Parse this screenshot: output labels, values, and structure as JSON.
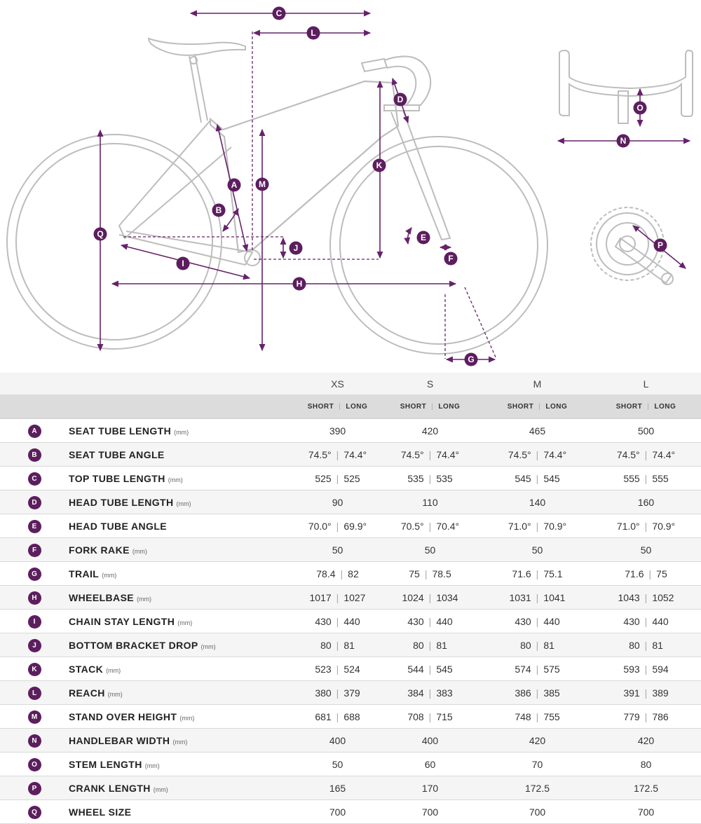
{
  "diagram": {
    "tags": [
      "C",
      "L",
      "A",
      "B",
      "D",
      "E",
      "F",
      "G",
      "H",
      "I",
      "J",
      "K",
      "M",
      "N",
      "O",
      "P",
      "Q"
    ]
  },
  "table": {
    "sizes": [
      "XS",
      "S",
      "M",
      "L"
    ],
    "short_label": "SHORT",
    "long_label": "LONG",
    "separator": "|",
    "rows": [
      {
        "code": "A",
        "label": "SEAT TUBE LENGTH",
        "unit": "(mm)",
        "values": [
          [
            "390"
          ],
          [
            "420"
          ],
          [
            "465"
          ],
          [
            "500"
          ]
        ]
      },
      {
        "code": "B",
        "label": "SEAT TUBE ANGLE",
        "unit": "",
        "values": [
          [
            "74.5°",
            "74.4°"
          ],
          [
            "74.5°",
            "74.4°"
          ],
          [
            "74.5°",
            "74.4°"
          ],
          [
            "74.5°",
            "74.4°"
          ]
        ]
      },
      {
        "code": "C",
        "label": "TOP TUBE LENGTH",
        "unit": "(mm)",
        "values": [
          [
            "525",
            "525"
          ],
          [
            "535",
            "535"
          ],
          [
            "545",
            "545"
          ],
          [
            "555",
            "555"
          ]
        ]
      },
      {
        "code": "D",
        "label": "HEAD TUBE LENGTH",
        "unit": "(mm)",
        "values": [
          [
            "90"
          ],
          [
            "110"
          ],
          [
            "140"
          ],
          [
            "160"
          ]
        ]
      },
      {
        "code": "E",
        "label": "HEAD TUBE ANGLE",
        "unit": "",
        "values": [
          [
            "70.0°",
            "69.9°"
          ],
          [
            "70.5°",
            "70.4°"
          ],
          [
            "71.0°",
            "70.9°"
          ],
          [
            "71.0°",
            "70.9°"
          ]
        ]
      },
      {
        "code": "F",
        "label": "FORK RAKE",
        "unit": "(mm)",
        "values": [
          [
            "50"
          ],
          [
            "50"
          ],
          [
            "50"
          ],
          [
            "50"
          ]
        ]
      },
      {
        "code": "G",
        "label": "TRAIL",
        "unit": "(mm)",
        "values": [
          [
            "78.4",
            "82"
          ],
          [
            "75",
            "78.5"
          ],
          [
            "71.6",
            "75.1"
          ],
          [
            "71.6",
            "75"
          ]
        ]
      },
      {
        "code": "H",
        "label": "WHEELBASE",
        "unit": "(mm)",
        "values": [
          [
            "1017",
            "1027"
          ],
          [
            "1024",
            "1034"
          ],
          [
            "1031",
            "1041"
          ],
          [
            "1043",
            "1052"
          ]
        ]
      },
      {
        "code": "I",
        "label": "CHAIN STAY LENGTH",
        "unit": "(mm)",
        "values": [
          [
            "430",
            "440"
          ],
          [
            "430",
            "440"
          ],
          [
            "430",
            "440"
          ],
          [
            "430",
            "440"
          ]
        ]
      },
      {
        "code": "J",
        "label": "BOTTOM BRACKET DROP",
        "unit": "(mm)",
        "values": [
          [
            "80",
            "81"
          ],
          [
            "80",
            "81"
          ],
          [
            "80",
            "81"
          ],
          [
            "80",
            "81"
          ]
        ]
      },
      {
        "code": "K",
        "label": "STACK",
        "unit": "(mm)",
        "values": [
          [
            "523",
            "524"
          ],
          [
            "544",
            "545"
          ],
          [
            "574",
            "575"
          ],
          [
            "593",
            "594"
          ]
        ]
      },
      {
        "code": "L",
        "label": "REACH",
        "unit": "(mm)",
        "values": [
          [
            "380",
            "379"
          ],
          [
            "384",
            "383"
          ],
          [
            "386",
            "385"
          ],
          [
            "391",
            "389"
          ]
        ]
      },
      {
        "code": "M",
        "label": "STAND OVER HEIGHT",
        "unit": "(mm)",
        "values": [
          [
            "681",
            "688"
          ],
          [
            "708",
            "715"
          ],
          [
            "748",
            "755"
          ],
          [
            "779",
            "786"
          ]
        ]
      },
      {
        "code": "N",
        "label": "HANDLEBAR WIDTH",
        "unit": "(mm)",
        "values": [
          [
            "400"
          ],
          [
            "400"
          ],
          [
            "420"
          ],
          [
            "420"
          ]
        ]
      },
      {
        "code": "O",
        "label": "STEM LENGTH",
        "unit": "(mm)",
        "values": [
          [
            "50"
          ],
          [
            "60"
          ],
          [
            "70"
          ],
          [
            "80"
          ]
        ]
      },
      {
        "code": "P",
        "label": "CRANK LENGTH",
        "unit": "(mm)",
        "values": [
          [
            "165"
          ],
          [
            "170"
          ],
          [
            "172.5"
          ],
          [
            "172.5"
          ]
        ]
      },
      {
        "code": "Q",
        "label": "WHEEL SIZE",
        "unit": "",
        "values": [
          [
            "700"
          ],
          [
            "700"
          ],
          [
            "700"
          ],
          [
            "700"
          ]
        ]
      }
    ]
  },
  "colors": {
    "accent": "#5c1e5e",
    "line": "#66226b",
    "bike": "#bdbdbd",
    "header_bg": "#dcdcdc",
    "row_alt": "#f5f5f5"
  }
}
